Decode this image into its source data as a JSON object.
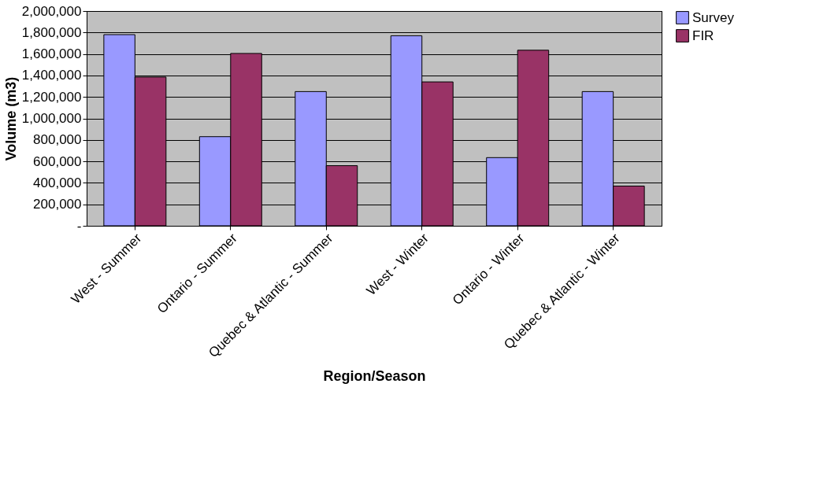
{
  "chart_data": {
    "type": "bar",
    "xlabel": "Region/Season",
    "ylabel": "Volume (m3)",
    "categories": [
      "West - Summer",
      "Ontario - Summer",
      "Quebec & Atlantic - Summer",
      "West - Winter",
      "Ontario - Winter",
      "Quebec & Atlantic - Winter"
    ],
    "series": [
      {
        "name": "Survey",
        "color": "#9999ff",
        "values": [
          1780000,
          830000,
          1250000,
          1770000,
          635000,
          1250000
        ]
      },
      {
        "name": "FIR",
        "color": "#993366",
        "values": [
          1385000,
          1605000,
          560000,
          1340000,
          1635000,
          370000
        ]
      }
    ],
    "ylim": [
      0,
      2000000
    ],
    "yticks": [
      {
        "value": 0,
        "label": "-"
      },
      {
        "value": 200000,
        "label": "200,000"
      },
      {
        "value": 400000,
        "label": "400,000"
      },
      {
        "value": 600000,
        "label": "600,000"
      },
      {
        "value": 800000,
        "label": "800,000"
      },
      {
        "value": 1000000,
        "label": "1,000,000"
      },
      {
        "value": 1200000,
        "label": "1,200,000"
      },
      {
        "value": 1400000,
        "label": "1,400,000"
      },
      {
        "value": 1600000,
        "label": "1,600,000"
      },
      {
        "value": 1800000,
        "label": "1,800,000"
      },
      {
        "value": 2000000,
        "label": "2,000,000"
      }
    ],
    "grid": "y",
    "legend": "right"
  }
}
